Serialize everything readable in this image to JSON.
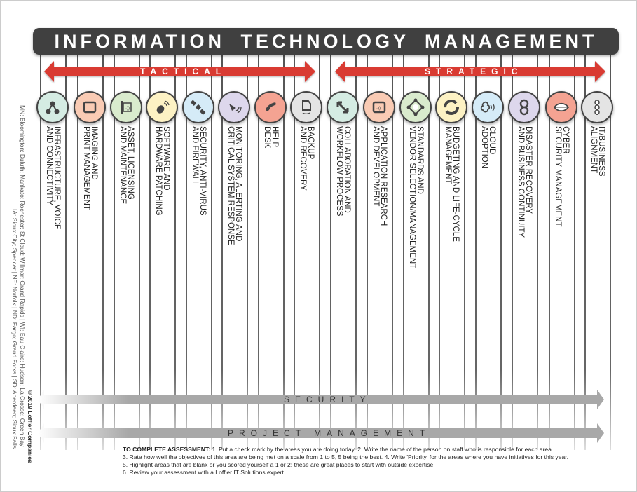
{
  "title": "INFORMATION TECHNOLOGY MANAGEMENT",
  "bands": {
    "tactical": "TACTICAL",
    "strategic": "STRATEGIC",
    "security": "SECURITY",
    "project_management": "PROJECT MANAGEMENT"
  },
  "colors": {
    "header": "#404040",
    "red_arrow": "#d93a33",
    "grey_arrow": "#a8a8a8"
  },
  "areas": [
    {
      "label": "INFRASTRUCTURE, VOICE\nAND CONNECTIVITY",
      "icon": "network-nodes-icon",
      "color": "#d5ece3"
    },
    {
      "label": "IMAGING AND\nPRINT MANAGEMENT",
      "icon": "document-icon",
      "color": "#f9cbb4"
    },
    {
      "label": "ASSET, LICENSING\nAND MAINTENANCE",
      "icon": "device-tag-icon",
      "color": "#d9ebcd"
    },
    {
      "label": "SOFTWARE AND\nHARDWARE PATCHING",
      "icon": "mouse-wireless-icon",
      "color": "#fdf2c4"
    },
    {
      "label": "SECURITY, ANTI-VIRUS\nAND FIREWALL",
      "icon": "satellite-icon",
      "color": "#d5ebf7"
    },
    {
      "label": "MONITORING, ALERTING AND\nCRITICAL SYSTEM RESPONSE",
      "icon": "radar-dish-icon",
      "color": "#ddd7ec"
    },
    {
      "label": "HELP\nDESK",
      "icon": "phone-icon",
      "color": "#f4a392"
    },
    {
      "label": "BACKUP\nAND RECOVERY",
      "icon": "backup-icon",
      "color": "#e4e4e4"
    },
    {
      "label": "COLLABORATION AND\nWORKFLOW PROCESS",
      "icon": "expand-arrows-icon",
      "color": "#d5ece3"
    },
    {
      "label": "APPLICATION RESEARCH\nAND DEVELOPMENT",
      "icon": "mobile-app-icon",
      "color": "#f9cbb4"
    },
    {
      "label": "STANDARDS AND\nVENDOR SELECTION/MANAGEMENT",
      "icon": "hub-icon",
      "color": "#d9ebcd"
    },
    {
      "label": "BUDGETING AND LIFE-CYCLE\nMANAGEMENT",
      "icon": "cycle-arrows-icon",
      "color": "#fdf2c4"
    },
    {
      "label": "CLOUD\nADOPTION",
      "icon": "cloud-icon",
      "color": "#d5ebf7"
    },
    {
      "label": "DISASTER RECOVERY\nAND BUSINESS CONTINUITY",
      "icon": "infinity-icon",
      "color": "#ddd7ec"
    },
    {
      "label": "CYBER\nSECURITY MANAGEMENT",
      "icon": "leaf-shield-icon",
      "color": "#f4a392"
    },
    {
      "label": "IT/BUSINESS\nALIGNMENT",
      "icon": "aligned-nodes-icon",
      "color": "#e4e4e4"
    }
  ],
  "sidebar": {
    "locations_line1": "MN: Bloomington; Duluth; Mankato; Rochester; St Cloud; Willmar; Grand Rapids  |  WI: Eau Claire; Hudson; La Crosse; Green Bay",
    "locations_line2": "IA: Sioux City; Spencer  |  NE: Norfolk  |  ND: Fargo; Grand Forks  |  SD: Aberdeen; Sioux Falls",
    "copyright": "©2019 Loffler Companies"
  },
  "instructions": {
    "heading": "TO COMPLETE ASSESSMENT:",
    "line1": " 1. Put a check mark by the areas you are doing today.  2. Write the name of the person on staff who is responsible for each area.",
    "line2": "3. Rate how well the objectives of this area are being met on a scale from 1 to 5, 5 being the best.  4. Write 'Priority' for the areas where you have initiatives for this year.",
    "line3": "5. Highlight areas that are blank or you scored yourself a 1 or 2; these are great places to start with outside expertise.",
    "line4": "6. Review your assessment with a Loffler IT Solutions expert."
  }
}
